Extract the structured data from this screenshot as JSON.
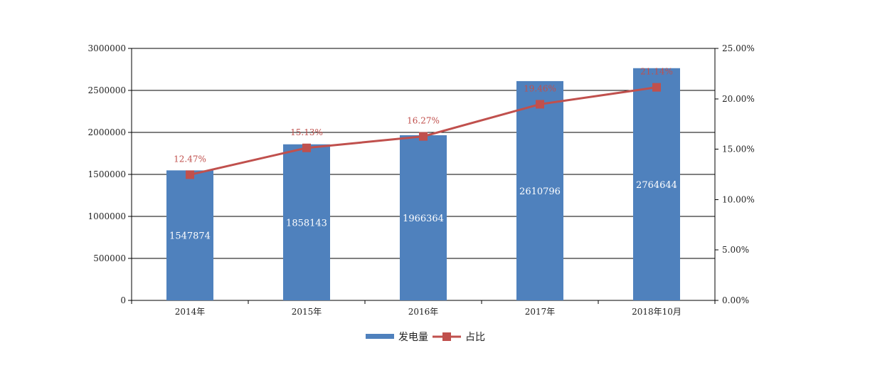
{
  "chart_data": {
    "type": "bar",
    "categories": [
      "2014年",
      "2015年",
      "2016年",
      "2017年",
      "2018年10月"
    ],
    "series": [
      {
        "name": "发电量",
        "type": "bar",
        "axis": "left",
        "values": [
          1547874,
          1858143,
          1966364,
          2610796,
          2764644
        ],
        "data_labels": [
          "1547874",
          "1858143",
          "1966364",
          "2610796",
          "2764644"
        ]
      },
      {
        "name": "占比",
        "type": "line",
        "axis": "right",
        "values": [
          12.47,
          15.13,
          16.27,
          19.46,
          21.14
        ],
        "data_labels": [
          "12.47%",
          "15.13%",
          "16.27%",
          "19.46%",
          "21.14%"
        ]
      }
    ],
    "y_left": {
      "min": 0,
      "max": 3000000,
      "ticks": [
        0,
        500000,
        1000000,
        1500000,
        2000000,
        2500000,
        3000000
      ],
      "tick_labels": [
        "0",
        "500000",
        "1000000",
        "1500000",
        "2000000",
        "2500000",
        "3000000"
      ]
    },
    "y_right": {
      "min": 0,
      "max": 25,
      "ticks": [
        0,
        5,
        10,
        15,
        20,
        25
      ],
      "tick_labels": [
        "0.00%",
        "5.00%",
        "10.00%",
        "15.00%",
        "20.00%",
        "25.00%"
      ]
    },
    "title": "",
    "xlabel": "",
    "ylabel": "",
    "grid": true,
    "legend_position": "bottom",
    "colors": {
      "bar": "#4f81bd",
      "line": "#c0504d",
      "pct_label": "#c0504d",
      "bar_label": "#ffffff",
      "grid": "#000000"
    }
  }
}
